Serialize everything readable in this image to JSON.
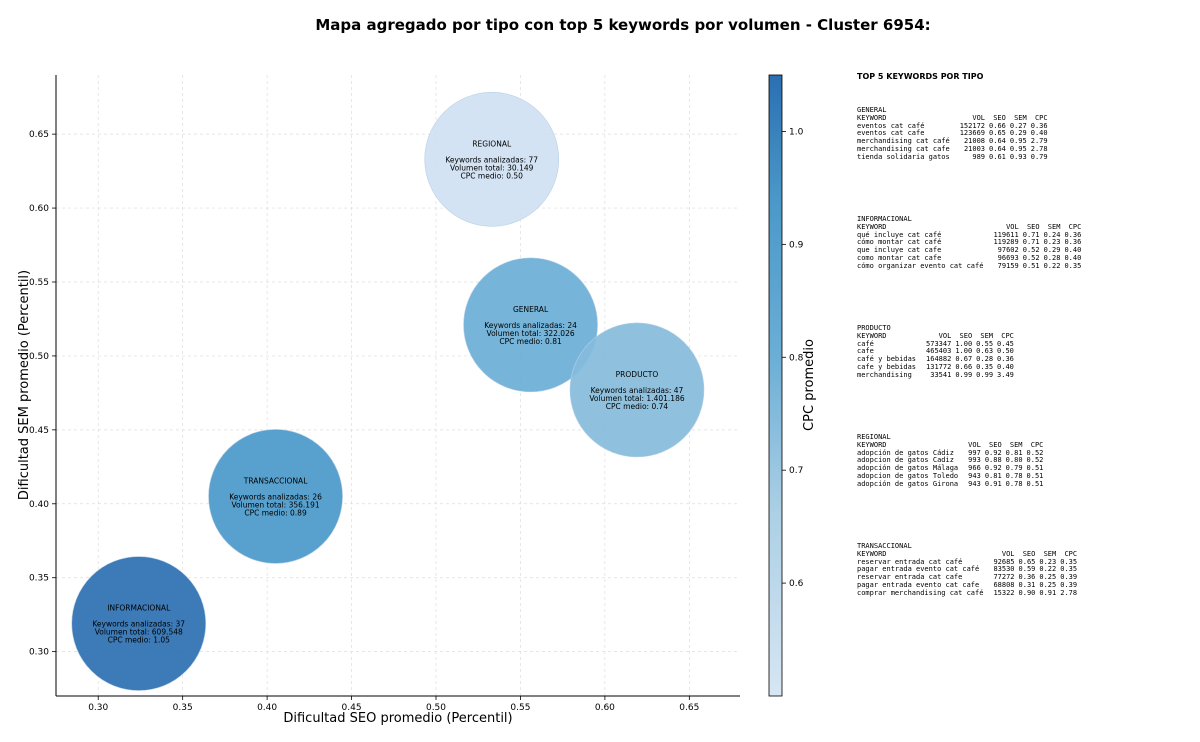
{
  "page": {
    "title": "Mapa agregado por tipo con top 5 keywords por volumen - Cluster 6954:"
  },
  "chart_data": {
    "type": "scatter",
    "title": "Mapa agregado por tipo con top 5 keywords por volumen - Cluster 6954:",
    "xlabel": "Dificultad SEO promedio (Percentil)",
    "ylabel": "Dificultad SEM promedio (Percentil)",
    "colorbar_label": "CPC promedio",
    "xlim": [
      0.275,
      0.68
    ],
    "ylim": [
      0.27,
      0.69
    ],
    "x_ticks": [
      "0.30",
      "0.35",
      "0.40",
      "0.45",
      "0.50",
      "0.55",
      "0.60",
      "0.65"
    ],
    "y_ticks": [
      "0.30",
      "0.35",
      "0.40",
      "0.45",
      "0.50",
      "0.55",
      "0.60",
      "0.65"
    ],
    "colorbar_ticks": [
      "0.6",
      "0.7",
      "0.8",
      "0.9",
      "1.0"
    ],
    "colorbar_range": [
      0.5,
      1.05
    ],
    "grid": true,
    "points": [
      {
        "label": "REGIONAL",
        "x": 0.533,
        "y": 0.633,
        "cpc": 0.5,
        "color": "#cfe1f2",
        "line1": "Keywords analizadas: 77",
        "line2": "Volumen total: 30.149",
        "line3": "CPC medio: 0.50"
      },
      {
        "label": "GENERAL",
        "x": 0.556,
        "y": 0.521,
        "cpc": 0.81,
        "color": "#6aaed6",
        "line1": "Keywords analizadas: 24",
        "line2": "Volumen total: 322.026",
        "line3": "CPC medio: 0.81"
      },
      {
        "label": "PRODUCTO",
        "x": 0.619,
        "y": 0.477,
        "cpc": 0.74,
        "color": "#85bcdc",
        "line1": "Keywords analizadas: 47",
        "line2": "Volumen total: 1.401.186",
        "line3": "CPC medio: 0.74"
      },
      {
        "label": "TRANSACCIONAL",
        "x": 0.405,
        "y": 0.405,
        "cpc": 0.89,
        "color": "#4a98c9",
        "line1": "Keywords analizadas: 26",
        "line2": "Volumen total: 356.191",
        "line3": "CPC medio: 0.89"
      },
      {
        "label": "INFORMACIONAL",
        "x": 0.324,
        "y": 0.319,
        "cpc": 1.05,
        "color": "#2b6fb2",
        "line1": "Keywords analizadas: 37",
        "line2": "Volumen total: 609.548",
        "line3": "CPC medio: 1.05"
      }
    ]
  },
  "side_panel": {
    "title": "TOP 5 KEYWORDS POR TIPO",
    "headers": {
      "keyword": "KEYWORD",
      "vol": "VOL",
      "seo": "SEO",
      "sem": "SEM",
      "cpc": "CPC"
    },
    "groups": [
      {
        "type": "GENERAL",
        "rows": [
          [
            "eventos cat café",
            "152172",
            "0.66",
            "0.27",
            "0.36"
          ],
          [
            "eventos cat cafe",
            "123669",
            "0.65",
            "0.29",
            "0.40"
          ],
          [
            "merchandising cat café",
            "21008",
            "0.64",
            "0.95",
            "2.79"
          ],
          [
            "merchandising cat cafe",
            "21003",
            "0.64",
            "0.95",
            "2.78"
          ],
          [
            "tienda solidaria gatos",
            "989",
            "0.61",
            "0.93",
            "0.79"
          ]
        ]
      },
      {
        "type": "INFORMACIONAL",
        "rows": [
          [
            "qué incluye cat café",
            "119611",
            "0.71",
            "0.24",
            "0.36"
          ],
          [
            "cómo montar cat café",
            "119289",
            "0.71",
            "0.23",
            "0.36"
          ],
          [
            "que incluye cat cafe",
            "97602",
            "0.52",
            "0.29",
            "0.40"
          ],
          [
            "como montar cat cafe",
            "96693",
            "0.52",
            "0.28",
            "0.40"
          ],
          [
            "cómo organizar evento cat café",
            "79159",
            "0.51",
            "0.22",
            "0.35"
          ]
        ]
      },
      {
        "type": "PRODUCTO",
        "rows": [
          [
            "café",
            "573347",
            "1.00",
            "0.55",
            "0.45"
          ],
          [
            "cafe",
            "465403",
            "1.00",
            "0.63",
            "0.50"
          ],
          [
            "café y bebidas",
            "164882",
            "0.67",
            "0.28",
            "0.36"
          ],
          [
            "cafe y bebidas",
            "131772",
            "0.66",
            "0.35",
            "0.40"
          ],
          [
            "merchandising",
            "33541",
            "0.99",
            "0.99",
            "3.49"
          ]
        ]
      },
      {
        "type": "REGIONAL",
        "rows": [
          [
            "adopción de gatos Cádiz",
            "997",
            "0.92",
            "0.81",
            "0.52"
          ],
          [
            "adopcion de gatos Cadiz",
            "993",
            "0.88",
            "0.80",
            "0.52"
          ],
          [
            "adopción de gatos Málaga",
            "966",
            "0.92",
            "0.79",
            "0.51"
          ],
          [
            "adopcion de gatos Toledo",
            "943",
            "0.81",
            "0.78",
            "0.51"
          ],
          [
            "adopción de gatos Girona",
            "943",
            "0.91",
            "0.78",
            "0.51"
          ]
        ]
      },
      {
        "type": "TRANSACCIONAL",
        "rows": [
          [
            "reservar entrada cat café",
            "92685",
            "0.65",
            "0.23",
            "0.35"
          ],
          [
            "pagar entrada evento cat café",
            "83530",
            "0.59",
            "0.22",
            "0.35"
          ],
          [
            "reservar entrada cat cafe",
            "77272",
            "0.36",
            "0.25",
            "0.39"
          ],
          [
            "pagar entrada evento cat cafe",
            "68808",
            "0.31",
            "0.25",
            "0.39"
          ],
          [
            "comprar merchandising cat café",
            "15322",
            "0.90",
            "0.91",
            "2.78"
          ]
        ]
      }
    ]
  }
}
